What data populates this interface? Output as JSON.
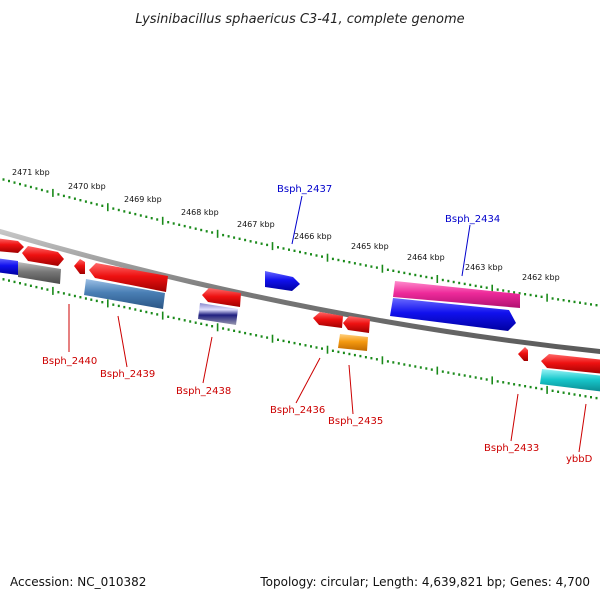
{
  "title": "Lysinibacillus sphaericus C3-41, complete genome",
  "footer": {
    "accession": "Accession: NC_010382",
    "topology": "Topology: circular; Length: 4,639,821 bp; Genes: 4,700"
  },
  "scale_labels": [
    "2471 kbp",
    "2470 kbp",
    "2469 kbp",
    "2468 kbp",
    "2467 kbp",
    "2466 kbp",
    "2465 kbp",
    "2464 kbp",
    "2463 kbp",
    "2462 kbp"
  ],
  "gene_labels_top": [
    "Bsph_2437",
    "Bsph_2434"
  ],
  "gene_labels_bottom": [
    "Bsph_2440",
    "Bsph_2439",
    "Bsph_2438",
    "Bsph_2436",
    "Bsph_2435",
    "Bsph_2433",
    "ybbD"
  ],
  "colors": {
    "backbone": "#8a8a8a",
    "tick": "#1a8a1a",
    "red": "#ee1111",
    "blue": "#1111ee",
    "steel": "#4a7fb5",
    "gray": "#777777",
    "navy": "#202080",
    "orange": "#f59a10",
    "pink": "#ee2a9a",
    "cyan": "#18c8cc",
    "label_red": "#cc0000",
    "label_blue": "#0000cc"
  }
}
